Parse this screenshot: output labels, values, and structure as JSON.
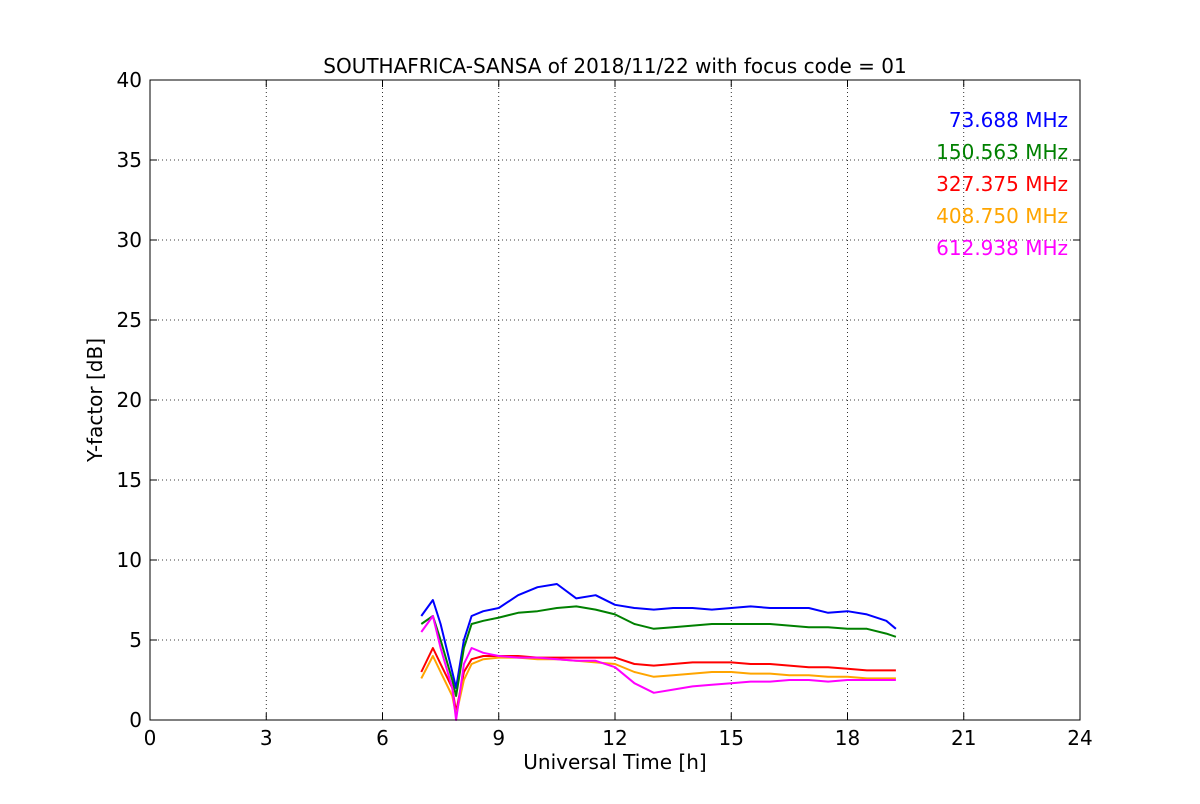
{
  "chart_data": {
    "type": "line",
    "title": "SOUTHAFRICA-SANSA of 2018/11/22 with focus code = 01",
    "xlabel": "Universal Time [h]",
    "ylabel": "Y-factor [dB]",
    "xlim": [
      0,
      24
    ],
    "ylim": [
      0,
      40
    ],
    "xticks": [
      0,
      3,
      6,
      9,
      12,
      15,
      18,
      21,
      24
    ],
    "yticks": [
      0,
      5,
      10,
      15,
      20,
      25,
      30,
      35,
      40
    ],
    "xtick_labels": [
      "0",
      "3",
      "6",
      "9",
      "12",
      "15",
      "18",
      "21",
      "24"
    ],
    "ytick_labels": [
      "0",
      "5",
      "10",
      "15",
      "20",
      "25",
      "30",
      "35",
      "40"
    ],
    "grid": true,
    "legend_position": "top-right",
    "series": [
      {
        "name": "73.688 MHz",
        "color": "#0000ff",
        "x": [
          7.0,
          7.3,
          7.5,
          7.8,
          7.9,
          8.1,
          8.3,
          8.6,
          9.0,
          9.5,
          10.0,
          10.5,
          11.0,
          11.5,
          12.0,
          12.5,
          13.0,
          13.5,
          14.0,
          14.5,
          15.0,
          15.5,
          16.0,
          16.5,
          17.0,
          17.5,
          18.0,
          18.5,
          19.0,
          19.25
        ],
        "y": [
          6.5,
          7.5,
          6.0,
          3.0,
          2.0,
          5.0,
          6.5,
          6.8,
          7.0,
          7.8,
          8.3,
          8.5,
          7.6,
          7.8,
          7.2,
          7.0,
          6.9,
          7.0,
          7.0,
          6.9,
          7.0,
          7.1,
          7.0,
          7.0,
          7.0,
          6.7,
          6.8,
          6.6,
          6.2,
          5.7
        ]
      },
      {
        "name": "150.563 MHz",
        "color": "#008000",
        "x": [
          7.0,
          7.3,
          7.5,
          7.8,
          7.9,
          8.1,
          8.3,
          8.6,
          9.0,
          9.5,
          10.0,
          10.5,
          11.0,
          11.5,
          12.0,
          12.5,
          13.0,
          13.5,
          14.0,
          14.5,
          15.0,
          15.5,
          16.0,
          16.5,
          17.0,
          17.5,
          18.0,
          18.5,
          19.0,
          19.25
        ],
        "y": [
          6.0,
          6.5,
          5.0,
          2.5,
          1.5,
          4.5,
          6.0,
          6.2,
          6.4,
          6.7,
          6.8,
          7.0,
          7.1,
          6.9,
          6.6,
          6.0,
          5.7,
          5.8,
          5.9,
          6.0,
          6.0,
          6.0,
          6.0,
          5.9,
          5.8,
          5.8,
          5.7,
          5.7,
          5.4,
          5.2
        ]
      },
      {
        "name": "327.375 MHz",
        "color": "#ff0000",
        "x": [
          7.0,
          7.3,
          7.5,
          7.8,
          7.9,
          8.1,
          8.3,
          8.6,
          9.0,
          9.5,
          10.0,
          10.5,
          11.0,
          11.5,
          12.0,
          12.5,
          13.0,
          13.5,
          14.0,
          14.5,
          15.0,
          15.5,
          16.0,
          16.5,
          17.0,
          17.5,
          18.0,
          18.5,
          19.0,
          19.25
        ],
        "y": [
          3.0,
          4.5,
          3.5,
          2.0,
          0.5,
          3.0,
          3.8,
          4.0,
          4.0,
          4.0,
          3.9,
          3.9,
          3.9,
          3.9,
          3.9,
          3.5,
          3.4,
          3.5,
          3.6,
          3.6,
          3.6,
          3.5,
          3.5,
          3.4,
          3.3,
          3.3,
          3.2,
          3.1,
          3.1,
          3.1
        ]
      },
      {
        "name": "408.750 MHz",
        "color": "#ffa500",
        "x": [
          7.0,
          7.3,
          7.5,
          7.8,
          7.9,
          8.1,
          8.3,
          8.6,
          9.0,
          9.5,
          10.0,
          10.5,
          11.0,
          11.5,
          12.0,
          12.5,
          13.0,
          13.5,
          14.0,
          14.5,
          15.0,
          15.5,
          16.0,
          16.5,
          17.0,
          17.5,
          18.0,
          18.5,
          19.0,
          19.25
        ],
        "y": [
          2.6,
          4.0,
          3.0,
          1.5,
          0.3,
          2.5,
          3.5,
          3.8,
          3.9,
          3.9,
          3.8,
          3.8,
          3.7,
          3.6,
          3.5,
          3.0,
          2.7,
          2.8,
          2.9,
          3.0,
          3.0,
          2.9,
          2.9,
          2.8,
          2.8,
          2.7,
          2.7,
          2.6,
          2.6,
          2.6
        ]
      },
      {
        "name": "612.938 MHz",
        "color": "#ff00ff",
        "x": [
          7.0,
          7.3,
          7.5,
          7.8,
          7.9,
          8.1,
          8.3,
          8.6,
          9.0,
          9.5,
          10.0,
          10.5,
          11.0,
          11.5,
          12.0,
          12.5,
          13.0,
          13.5,
          14.0,
          14.5,
          15.0,
          15.5,
          16.0,
          16.5,
          17.0,
          17.5,
          18.0,
          18.5,
          19.0,
          19.25
        ],
        "y": [
          5.5,
          6.5,
          4.5,
          2.0,
          0.0,
          3.5,
          4.5,
          4.2,
          4.0,
          3.9,
          3.9,
          3.8,
          3.7,
          3.7,
          3.3,
          2.3,
          1.7,
          1.9,
          2.1,
          2.2,
          2.3,
          2.4,
          2.4,
          2.5,
          2.5,
          2.4,
          2.5,
          2.5,
          2.5,
          2.5
        ]
      }
    ]
  }
}
